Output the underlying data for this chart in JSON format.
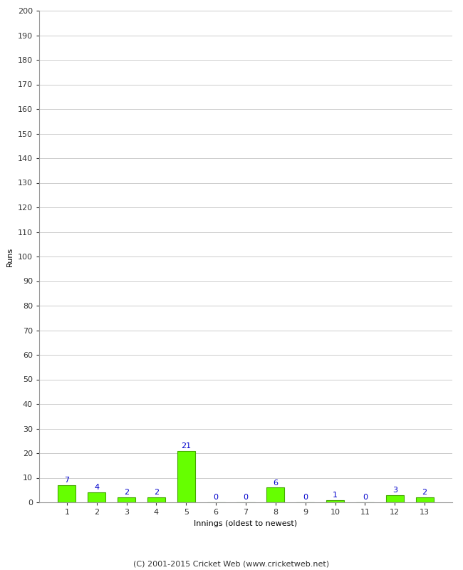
{
  "innings": [
    1,
    2,
    3,
    4,
    5,
    6,
    7,
    8,
    9,
    10,
    11,
    12,
    13
  ],
  "runs": [
    7,
    4,
    2,
    2,
    21,
    0,
    0,
    6,
    0,
    1,
    0,
    3,
    2
  ],
  "bar_color": "#66ff00",
  "bar_edge_color": "#44aa00",
  "label_color": "#0000cc",
  "ylabel": "Runs",
  "xlabel": "Innings (oldest to newest)",
  "ylim": [
    0,
    200
  ],
  "yticks": [
    0,
    10,
    20,
    30,
    40,
    50,
    60,
    70,
    80,
    90,
    100,
    110,
    120,
    130,
    140,
    150,
    160,
    170,
    180,
    190,
    200
  ],
  "footer": "(C) 2001-2015 Cricket Web (www.cricketweb.net)",
  "background_color": "#ffffff",
  "grid_color": "#cccccc",
  "label_fontsize": 8,
  "tick_fontsize": 8,
  "footer_fontsize": 8,
  "bar_label_fontsize": 8
}
